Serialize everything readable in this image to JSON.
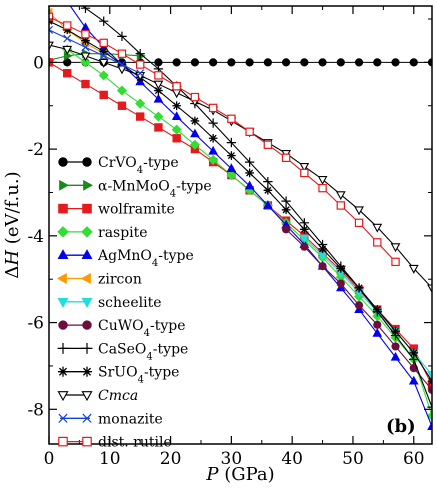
{
  "chart_data": {
    "type": "line",
    "xlabel": {
      "italic": "P",
      "rest": " (GPa)"
    },
    "ylabel": {
      "prefix": "Δ",
      "italic": "H",
      "rest": " (eV/f.u.)"
    },
    "xlim": [
      0,
      63
    ],
    "ylim": [
      -8.8,
      1.3
    ],
    "xticks": [
      0,
      10,
      20,
      30,
      40,
      50,
      60
    ],
    "yticks": [
      0,
      -2,
      -4,
      -6,
      -8
    ],
    "panel_label": "(b)",
    "legend_placement": "bottom-left",
    "series": [
      {
        "name": "CrVO4-type",
        "label": {
          "base": "CrVO",
          "sub": "4",
          "tail": "-type"
        },
        "color": "#000000",
        "marker": "circle",
        "fill": true,
        "x": [
          0,
          3,
          6,
          9,
          12,
          15,
          18,
          21,
          24,
          27,
          30,
          33,
          36,
          39,
          42,
          45,
          48,
          51,
          54,
          57,
          60,
          63
        ],
        "y": [
          0,
          0,
          0,
          0,
          0,
          0,
          0,
          0,
          0,
          0,
          0,
          0,
          0,
          0,
          0,
          0,
          0,
          0,
          0,
          0,
          0,
          0
        ]
      },
      {
        "name": "α-MnMoO4-type",
        "label": {
          "base": "α-MnMoO",
          "sub": "4",
          "tail": "-type"
        },
        "color": "#1a8a1a",
        "marker": "triangle-right",
        "fill": true,
        "x": [
          0,
          3,
          6,
          9,
          12,
          15
        ],
        "y": [
          0.05,
          0.15,
          0.2,
          0.2,
          0.18,
          0.15
        ]
      },
      {
        "name": "wolframite",
        "label": {
          "base": "wolframite"
        },
        "color": "#e41a1c",
        "marker": "square",
        "fill": true,
        "x": [
          0,
          3,
          6,
          9,
          12,
          15,
          18,
          21,
          24,
          27,
          30,
          33,
          36,
          39,
          42,
          45,
          48,
          51,
          54,
          57,
          60,
          63
        ],
        "y": [
          0.0,
          -0.25,
          -0.5,
          -0.75,
          -1.0,
          -1.25,
          -1.5,
          -1.75,
          -2.0,
          -2.3,
          -2.6,
          -2.95,
          -3.3,
          -3.65,
          -4.0,
          -4.4,
          -4.8,
          -5.25,
          -5.7,
          -6.15,
          -6.6,
          -7.45
        ]
      },
      {
        "name": "raspite",
        "label": {
          "base": "raspite"
        },
        "color": "#33dd33",
        "marker": "diamond",
        "fill": true,
        "x": [
          3,
          6,
          9,
          12,
          15,
          18,
          21,
          24,
          27,
          30,
          33,
          36,
          39,
          42,
          45,
          48,
          51,
          54,
          57,
          60,
          63
        ],
        "y": [
          0.3,
          0.0,
          -0.3,
          -0.65,
          -0.95,
          -1.25,
          -1.55,
          -1.9,
          -2.25,
          -2.6,
          -2.95,
          -3.3,
          -3.7,
          -4.1,
          -4.5,
          -4.95,
          -5.4,
          -5.85,
          -6.35,
          -6.85,
          -8.15
        ]
      },
      {
        "name": "AgMnO4-type",
        "label": {
          "base": "AgMnO",
          "sub": "4",
          "tail": "-type"
        },
        "color": "#0000ee",
        "marker": "triangle-up",
        "fill": true,
        "x": [
          3,
          6,
          9,
          12,
          15,
          18,
          21,
          24,
          27,
          30,
          33,
          36,
          39,
          42,
          45,
          48,
          51,
          54,
          57,
          60,
          63
        ],
        "y": [
          1.4,
          0.8,
          0.35,
          -0.05,
          -0.45,
          -0.85,
          -1.25,
          -1.65,
          -2.05,
          -2.45,
          -2.85,
          -3.3,
          -3.75,
          -4.2,
          -4.7,
          -5.2,
          -5.7,
          -6.25,
          -6.8,
          -7.35,
          -8.4
        ]
      },
      {
        "name": "zircon",
        "label": {
          "base": "zircon"
        },
        "color": "#ff9900",
        "marker": "triangle-left",
        "fill": true,
        "x": [
          0,
          3,
          6,
          9
        ],
        "y": [
          1.15,
          0.75,
          0.45,
          0.2
        ]
      },
      {
        "name": "scheelite",
        "label": {
          "base": "scheelite"
        },
        "color": "#22dddd",
        "marker": "triangle-down",
        "fill": true,
        "x": [
          42,
          45,
          48,
          51,
          54,
          57,
          60,
          63
        ],
        "y": [
          -4.05,
          -4.45,
          -4.85,
          -5.3,
          -5.75,
          -6.2,
          -6.7,
          -7.2
        ]
      },
      {
        "name": "CuWO4-type",
        "label": {
          "base": "CuWO",
          "sub": "4",
          "tail": "-type"
        },
        "color": "#6b0f3f",
        "marker": "circle",
        "fill": true,
        "x": [
          39,
          42,
          45,
          48,
          51,
          54,
          57,
          60,
          63
        ],
        "y": [
          -3.85,
          -4.25,
          -4.7,
          -5.1,
          -5.6,
          -6.05,
          -6.55,
          -7.05,
          -7.55
        ]
      },
      {
        "name": "CaSeO4-type",
        "label": {
          "base": "CaSeO",
          "sub": "4",
          "tail": "-type"
        },
        "color": "#000000",
        "marker": "plus",
        "fill": false,
        "x": [
          0,
          3,
          6,
          9,
          12,
          15,
          18,
          21,
          24,
          27,
          30,
          33,
          36,
          39,
          42,
          45,
          48,
          51,
          54,
          57,
          60,
          63
        ],
        "y": [
          1.8,
          1.55,
          1.25,
          0.95,
          0.6,
          0.2,
          -0.15,
          -0.55,
          -0.95,
          -1.4,
          -1.85,
          -2.3,
          -2.75,
          -3.2,
          -3.7,
          -4.2,
          -4.7,
          -5.2,
          -5.75,
          -6.3,
          -6.85,
          -7.95
        ]
      },
      {
        "name": "SrUO4-type",
        "label": {
          "base": "SrUO",
          "sub": "4",
          "tail": "-type"
        },
        "color": "#000000",
        "marker": "star",
        "fill": false,
        "x": [
          0,
          3,
          6,
          9,
          12,
          15,
          18,
          21,
          24,
          27,
          30,
          33,
          36,
          39,
          42,
          45,
          48,
          51,
          54,
          57,
          60,
          63
        ],
        "y": [
          0.95,
          0.75,
          0.5,
          0.25,
          -0.05,
          -0.35,
          -0.65,
          -1.0,
          -1.35,
          -1.75,
          -2.15,
          -2.55,
          -2.95,
          -3.4,
          -3.85,
          -4.3,
          -4.75,
          -5.2,
          -5.7,
          -6.2,
          -6.7,
          -7.35
        ]
      },
      {
        "name": "Cmca",
        "label": {
          "base": "Cmca",
          "italic": true
        },
        "color": "#000000",
        "marker": "triangle-down",
        "fill": false,
        "x": [
          0,
          3,
          6,
          9,
          12,
          15,
          18,
          21,
          24,
          27,
          30,
          33,
          36,
          39,
          42,
          45,
          48,
          51,
          54,
          57,
          60,
          63
        ],
        "y": [
          0.4,
          0.3,
          0.15,
          0.0,
          -0.15,
          -0.3,
          -0.5,
          -0.7,
          -0.9,
          -1.1,
          -1.35,
          -1.6,
          -1.85,
          -2.1,
          -2.4,
          -2.7,
          -3.05,
          -3.4,
          -3.8,
          -4.25,
          -4.75,
          -5.2
        ]
      },
      {
        "name": "monazite",
        "label": {
          "base": "monazite"
        },
        "color": "#1040e0",
        "marker": "cross",
        "fill": false,
        "x": [
          0,
          3,
          6,
          9,
          12,
          15
        ],
        "y": [
          0.75,
          0.55,
          0.35,
          0.15,
          -0.05,
          -0.25
        ]
      },
      {
        "name": "dist. rutile",
        "label": {
          "base": "dist. rutile"
        },
        "color": "#e41a1c",
        "marker": "square",
        "fill": false,
        "x": [
          0,
          3,
          6,
          9,
          12,
          15,
          18,
          21,
          24,
          27,
          30,
          33,
          36,
          39,
          42,
          45,
          48,
          51,
          54,
          57
        ],
        "y": [
          1.05,
          0.85,
          0.65,
          0.45,
          0.2,
          -0.05,
          -0.3,
          -0.55,
          -0.8,
          -1.05,
          -1.3,
          -1.6,
          -1.9,
          -2.2,
          -2.55,
          -2.9,
          -3.3,
          -3.7,
          -4.15,
          -4.6
        ]
      }
    ]
  }
}
